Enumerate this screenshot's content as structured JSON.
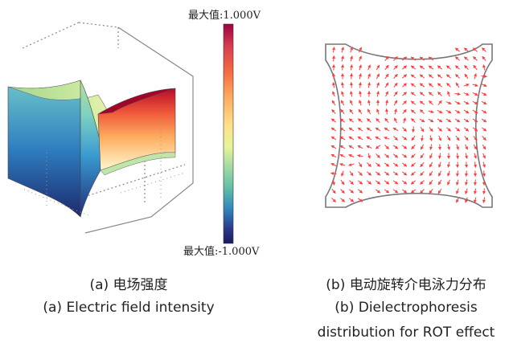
{
  "panel_a": {
    "colorbar_max_label": "最大值:1.000V",
    "colorbar_min_label": "最大值:-1.000V",
    "colorbar_colors": [
      "#9e0142",
      "#d53e4f",
      "#f46d43",
      "#fdae61",
      "#fee08b",
      "#e6f598",
      "#abdda4",
      "#66c2a5",
      "#3288bd",
      "#2b3a8f",
      "#1a1a5e"
    ],
    "caption_cn": "(a) 电场强度",
    "caption_en": "(a) Electric field intensity"
  },
  "panel_b": {
    "arrow_color": "#ff3b3b",
    "outline_color": "#777777",
    "caption_cn": "(b) 电动旋转介电泳力分布",
    "caption_en_line1": "(b) Dielectrophoresis",
    "caption_en_line2": "distribution for ROT effect"
  }
}
